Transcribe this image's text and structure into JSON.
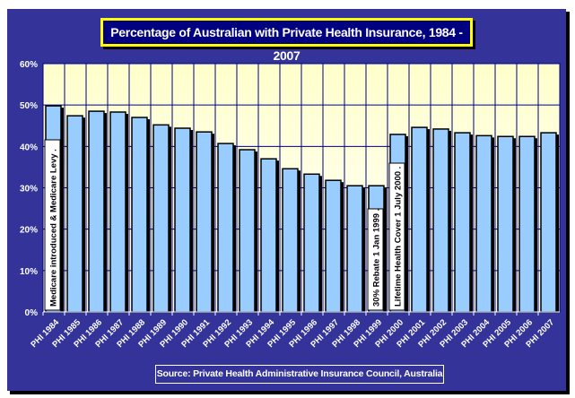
{
  "chart_data": {
    "type": "bar",
    "title": "Percentage of Australian with Private Health Insurance, 1984 - 2007",
    "source": "Source: Private Health Administrative Insurance Council, Australia",
    "categories": [
      "PHI 1984",
      "PHI 1985",
      "PHI 1986",
      "PHI 1987",
      "PHI 1988",
      "PHI 1989",
      "PHI 1990",
      "PHI 1991",
      "PHI 1992",
      "PHI 1993",
      "PHI 1994",
      "PHI 1995",
      "PHI 1996",
      "PHI 1997",
      "PHI 1998",
      "PHI 1999",
      "PHI 2000",
      "PHI 2001",
      "PHI 2002",
      "PHI 2003",
      "PHI 2004",
      "PHI 2005",
      "PHI 2006",
      "PHI 2007"
    ],
    "values": [
      49.8,
      47.4,
      48.5,
      48.3,
      47.0,
      45.2,
      44.4,
      43.5,
      40.7,
      39.2,
      37.0,
      34.6,
      33.3,
      31.8,
      30.5,
      30.5,
      42.9,
      44.6,
      44.2,
      43.3,
      42.6,
      42.4,
      42.4,
      43.3
    ],
    "ylim": [
      0,
      60
    ],
    "yticks": [
      "0%",
      "10%",
      "20%",
      "30%",
      "40%",
      "50%",
      "60%"
    ],
    "xlabel": "",
    "ylabel": "",
    "grid": true,
    "annotations": [
      {
        "category": "PHI 1984",
        "text": "Medicare introduced & Medicare Levy ."
      },
      {
        "category": "PHI 1999",
        "text": "30% Rebate 1 Jan 1999 ."
      },
      {
        "category": "PHI 2000",
        "text": "Lifetime Health Cover 1 July 2000 ."
      }
    ],
    "colors": {
      "frame": "#333399",
      "plot_bg_top": "#ffffcc",
      "plot_bg_bottom": "#ffffff",
      "bar": "#99ccff",
      "bar_outline": "#000000",
      "grid": "#000080",
      "title_border": "#ffff00",
      "title_bg": "#000080",
      "text": "#ffffff"
    }
  }
}
